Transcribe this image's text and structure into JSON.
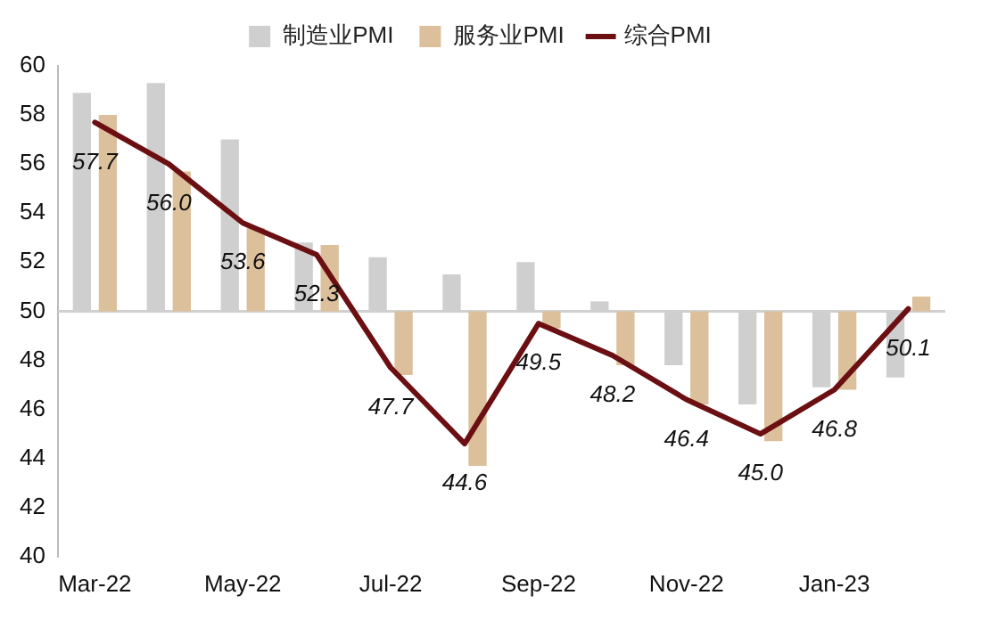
{
  "chart_data": {
    "type": "bar",
    "categories": [
      "Mar-22",
      null,
      "May-22",
      null,
      "Jul-22",
      null,
      "Sep-22",
      null,
      "Nov-22",
      null,
      "Jan-23",
      null
    ],
    "ylim": [
      40,
      60
    ],
    "yticks": [
      40,
      42,
      44,
      46,
      48,
      50,
      52,
      54,
      56,
      58,
      60
    ],
    "grid": false,
    "legend": "top",
    "ref_lines": [
      {
        "axis": "y",
        "value": 50,
        "color": "#d0d0d0"
      }
    ],
    "series": [
      {
        "name": "制造业PMI",
        "color": "#d0cfd0",
        "base": [
          50,
          50,
          50,
          50,
          50,
          50,
          50,
          50,
          50,
          50,
          50,
          50
        ],
        "values": [
          8.9,
          9.3,
          7.0,
          2.8,
          2.2,
          1.5,
          2.0,
          0.4,
          -2.2,
          -3.8,
          -3.1,
          -2.7
        ]
      },
      {
        "name": "服务业PMI",
        "color": "#dcc09c",
        "base": [
          50,
          50,
          50,
          50,
          50,
          50,
          50,
          50,
          50,
          50,
          50,
          50
        ],
        "values": [
          8.0,
          5.7,
          3.4,
          2.7,
          -2.6,
          -6.3,
          -0.7,
          -2.2,
          -3.8,
          -5.3,
          -3.2,
          0.6
        ]
      },
      {
        "name": "综合PMI",
        "type": "line",
        "color": "#6b0f12",
        "line_style": "solid",
        "marker": "none",
        "values": [
          57.7,
          56.0,
          53.6,
          52.3,
          47.7,
          44.6,
          49.5,
          48.2,
          46.4,
          45.0,
          46.8,
          50.1
        ],
        "value_labels": [
          "57.7",
          "56.0",
          "53.6",
          "52.3",
          "47.7",
          "44.6",
          "49.5",
          "48.2",
          "46.4",
          "45.0",
          "46.8",
          "50.1"
        ]
      }
    ]
  }
}
